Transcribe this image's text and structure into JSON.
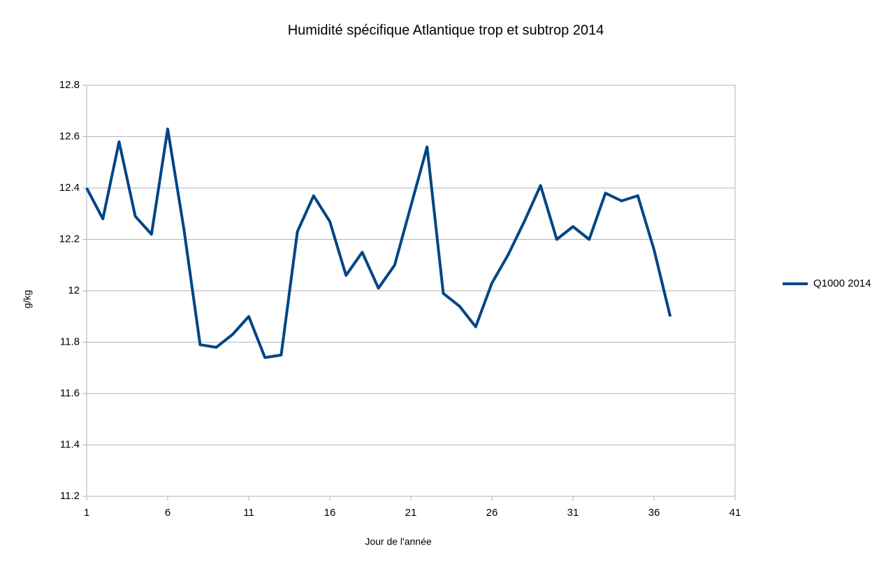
{
  "chart_data": {
    "type": "line",
    "title": "Humidité spécifique Atlantique trop et subtrop 2014",
    "x_label": "Jour de l'année",
    "y_label": "g/kg",
    "x": [
      1,
      2,
      3,
      4,
      5,
      6,
      7,
      8,
      9,
      10,
      11,
      12,
      13,
      14,
      15,
      16,
      17,
      18,
      19,
      20,
      21,
      22,
      23,
      24,
      25,
      26,
      27,
      28,
      29,
      30,
      31,
      32,
      33,
      34,
      35,
      36,
      37
    ],
    "series": [
      {
        "name": "Q1000 2014",
        "color": "#004586",
        "values": [
          12.4,
          12.28,
          12.58,
          12.29,
          12.22,
          12.63,
          12.24,
          11.79,
          11.78,
          11.83,
          11.9,
          11.74,
          11.75,
          12.23,
          12.37,
          12.27,
          12.06,
          12.15,
          12.01,
          12.1,
          12.33,
          12.56,
          11.99,
          11.94,
          11.86,
          12.03,
          12.14,
          12.27,
          12.41,
          12.2,
          12.25,
          12.2,
          12.38,
          12.35,
          12.37,
          12.16,
          11.9
        ]
      }
    ],
    "xlim": [
      1,
      41
    ],
    "xticks": [
      1,
      6,
      11,
      16,
      21,
      26,
      31,
      36,
      41
    ],
    "ylim": [
      11.2,
      12.8
    ],
    "yticks": [
      11.2,
      11.4,
      11.6,
      11.8,
      12,
      12.2,
      12.4,
      12.6,
      12.8
    ],
    "grid": true,
    "legend": "right"
  }
}
